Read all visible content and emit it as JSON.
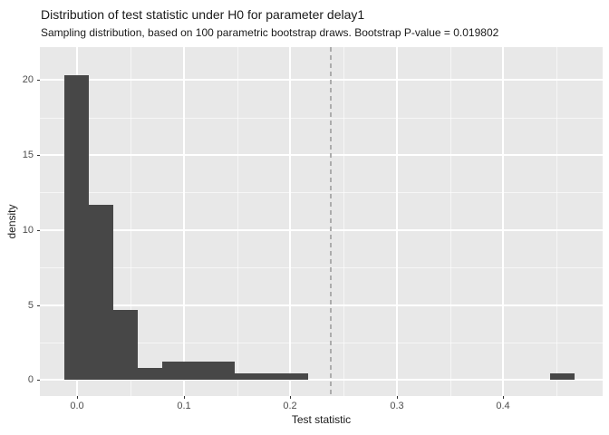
{
  "chart_data": {
    "type": "bar",
    "subtype": "histogram",
    "title": "Distribution of test statistic under H0 for parameter delay1",
    "subtitle": "Sampling distribution, based on 100 parametric bootstrap draws. Bootstrap P-value = 0.019802",
    "xlabel": "Test statistic",
    "ylabel": "density",
    "xlim": [
      -0.0353,
      0.4932
    ],
    "ylim": [
      -1.07,
      22.2
    ],
    "x_ticks": [
      0.0,
      0.1,
      0.2,
      0.3,
      0.4
    ],
    "x_tick_labels": [
      "0.0",
      "0.1",
      "0.2",
      "0.3",
      "0.4"
    ],
    "y_ticks": [
      0,
      5,
      10,
      15,
      20
    ],
    "y_tick_labels": [
      "0",
      "5",
      "10",
      "15",
      "20"
    ],
    "x_minor_ticks": [
      0.05,
      0.15,
      0.25,
      0.35,
      0.45
    ],
    "y_minor_ticks": [
      2.5,
      7.5,
      12.5,
      17.5
    ],
    "grid": true,
    "legend": false,
    "bins": [
      {
        "x0": -0.012,
        "x1": 0.011,
        "density": 20.3
      },
      {
        "x0": 0.011,
        "x1": 0.034,
        "density": 11.7
      },
      {
        "x0": 0.034,
        "x1": 0.057,
        "density": 4.7
      },
      {
        "x0": 0.057,
        "x1": 0.08,
        "density": 0.8
      },
      {
        "x0": 0.08,
        "x1": 0.103,
        "density": 1.25
      },
      {
        "x0": 0.103,
        "x1": 0.125,
        "density": 1.25
      },
      {
        "x0": 0.125,
        "x1": 0.148,
        "density": 1.25
      },
      {
        "x0": 0.148,
        "x1": 0.171,
        "density": 0.42
      },
      {
        "x0": 0.171,
        "x1": 0.194,
        "density": 0.42
      },
      {
        "x0": 0.194,
        "x1": 0.217,
        "density": 0.42
      },
      {
        "x0": 0.444,
        "x1": 0.467,
        "density": 0.42
      }
    ],
    "vline": {
      "x": 0.238,
      "style": "dashed",
      "color": "#ACACAC"
    },
    "colors": {
      "bar": "#474747",
      "panel_background": "#E8E8E8",
      "gridline": "#FFFFFF",
      "tick_text": "#4D4D4D",
      "title_text": "#1a1a1a",
      "figure_background": "#FFFFFF"
    }
  }
}
